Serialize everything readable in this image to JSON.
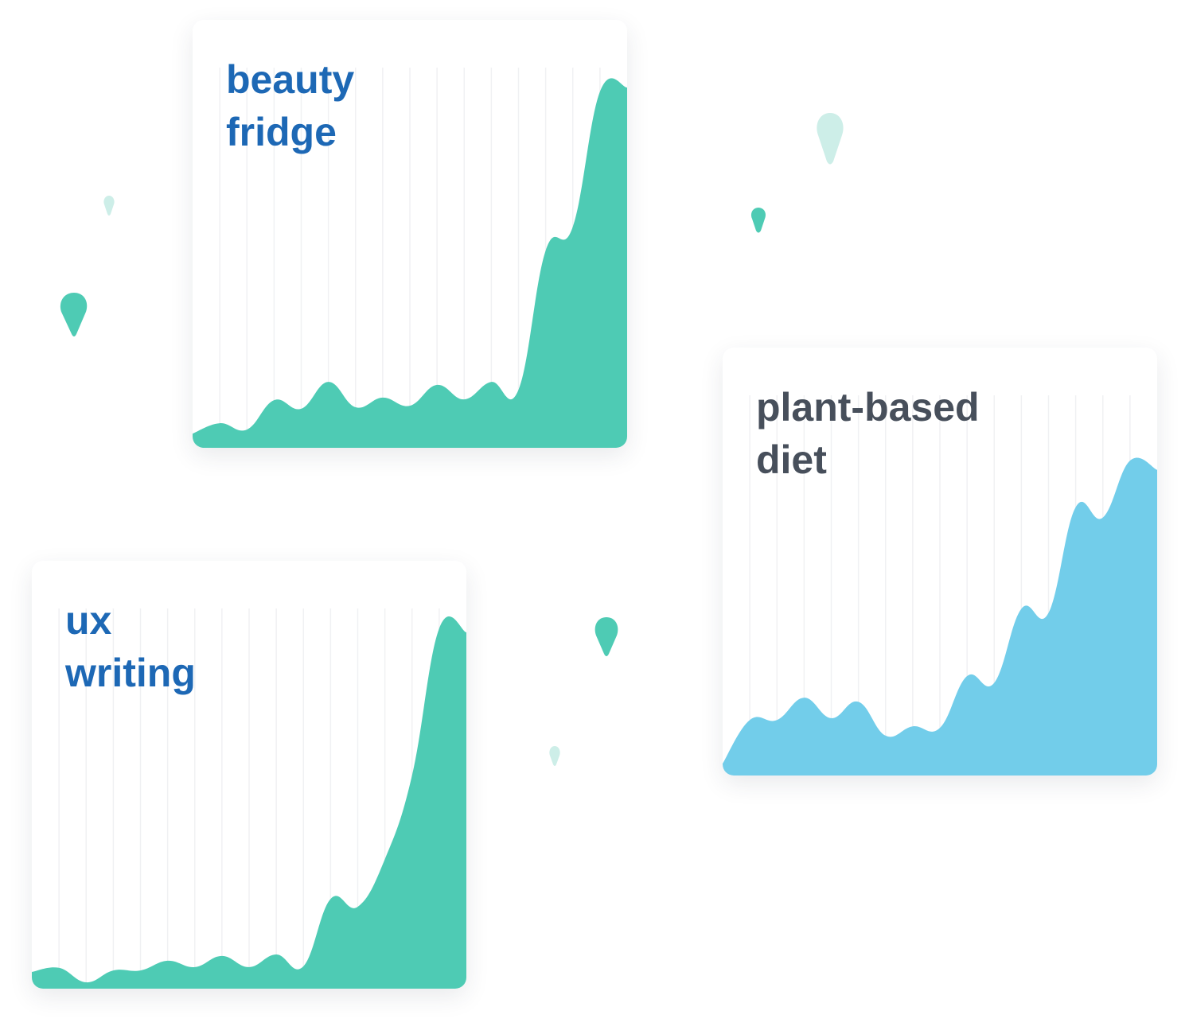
{
  "chart_data": [
    {
      "type": "area",
      "title": "beauty fridge",
      "title_color": "#1d68b5",
      "color": "#4ecbb4",
      "categories": [
        null,
        null,
        null,
        null,
        null,
        null,
        null,
        null,
        null,
        null,
        null,
        null,
        null,
        null,
        null,
        null,
        null
      ],
      "values": [
        3.8,
        6.6,
        4.9,
        12.8,
        10.5,
        17.7,
        10.9,
        13.5,
        11.3,
        16.9,
        13.0,
        17.7,
        15.6,
        53,
        59.4,
        95.7,
        96.8
      ],
      "ylim": [
        0,
        100
      ]
    },
    {
      "type": "area",
      "title": "plant-based diet",
      "title_color": "#474f5b",
      "color": "#72cdea",
      "categories": [
        null,
        null,
        null,
        null,
        null,
        null,
        null,
        null,
        null,
        null,
        null,
        null,
        null,
        null,
        null,
        null,
        null
      ],
      "values": [
        3.2,
        14.9,
        14.9,
        20.9,
        15.4,
        19.8,
        10.7,
        13.2,
        12.8,
        26.7,
        24.9,
        44.8,
        43.7,
        72.1,
        69.3,
        84.6,
        82.1
      ],
      "ylim": [
        0,
        100
      ]
    },
    {
      "type": "area",
      "title": "ux writing",
      "title_color": "#1d68b5",
      "color": "#4ecbb4",
      "categories": [
        null,
        null,
        null,
        null,
        null,
        null,
        null,
        null,
        null,
        null,
        null,
        null,
        null,
        null,
        null,
        null,
        null
      ],
      "values": [
        4.5,
        5.6,
        1.7,
        4.9,
        4.9,
        7.5,
        5.8,
        8.8,
        5.8,
        9.2,
        6.0,
        24.1,
        22.0,
        34.8,
        57.3,
        96.8,
        95.7
      ],
      "ylim": [
        0,
        100
      ]
    }
  ]
}
